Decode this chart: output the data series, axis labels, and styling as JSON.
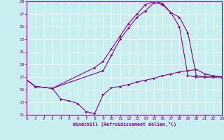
{
  "bg_color": "#c8eef0",
  "line_color": "#880088",
  "xlabel": "Windchill (Refroidissement éolien,°C)",
  "xlim": [
    0,
    23
  ],
  "ylim": [
    11,
    29
  ],
  "xticks": [
    0,
    1,
    2,
    3,
    4,
    5,
    6,
    7,
    8,
    9,
    10,
    11,
    12,
    13,
    14,
    15,
    16,
    17,
    18,
    19,
    20,
    21,
    22,
    23
  ],
  "yticks": [
    11,
    13,
    15,
    17,
    19,
    21,
    23,
    25,
    27,
    29
  ],
  "line1_x": [
    0,
    1,
    3,
    9,
    10,
    11,
    12,
    13,
    14,
    15,
    16,
    17,
    18,
    19,
    20,
    21,
    22,
    23
  ],
  "line1_y": [
    16.5,
    15.5,
    15.2,
    18.0,
    20.5,
    23.0,
    24.8,
    26.5,
    27.5,
    28.8,
    28.5,
    27.2,
    25.0,
    17.2,
    17.0,
    17.0,
    17.0,
    17.0
  ],
  "line2_x": [
    0,
    1,
    3,
    8,
    9,
    10,
    11,
    12,
    13,
    14,
    15,
    16,
    17,
    18,
    19,
    20,
    21,
    22,
    23
  ],
  "line2_y": [
    16.5,
    15.5,
    15.2,
    18.5,
    19.5,
    21.5,
    23.5,
    25.5,
    27.0,
    28.5,
    29.0,
    28.7,
    27.2,
    26.5,
    24.0,
    17.2,
    17.0,
    17.0,
    17.0
  ],
  "line3_x": [
    0,
    1,
    3,
    4,
    5,
    6,
    7,
    8,
    9,
    10,
    11,
    12,
    13,
    14,
    15,
    16,
    17,
    18,
    19,
    20,
    21,
    22,
    23
  ],
  "line3_y": [
    16.5,
    15.5,
    15.2,
    13.5,
    13.2,
    12.8,
    11.5,
    11.2,
    14.2,
    15.3,
    15.5,
    15.8,
    16.2,
    16.5,
    16.8,
    17.2,
    17.5,
    17.8,
    18.0,
    18.2,
    17.5,
    17.2,
    17.0
  ]
}
